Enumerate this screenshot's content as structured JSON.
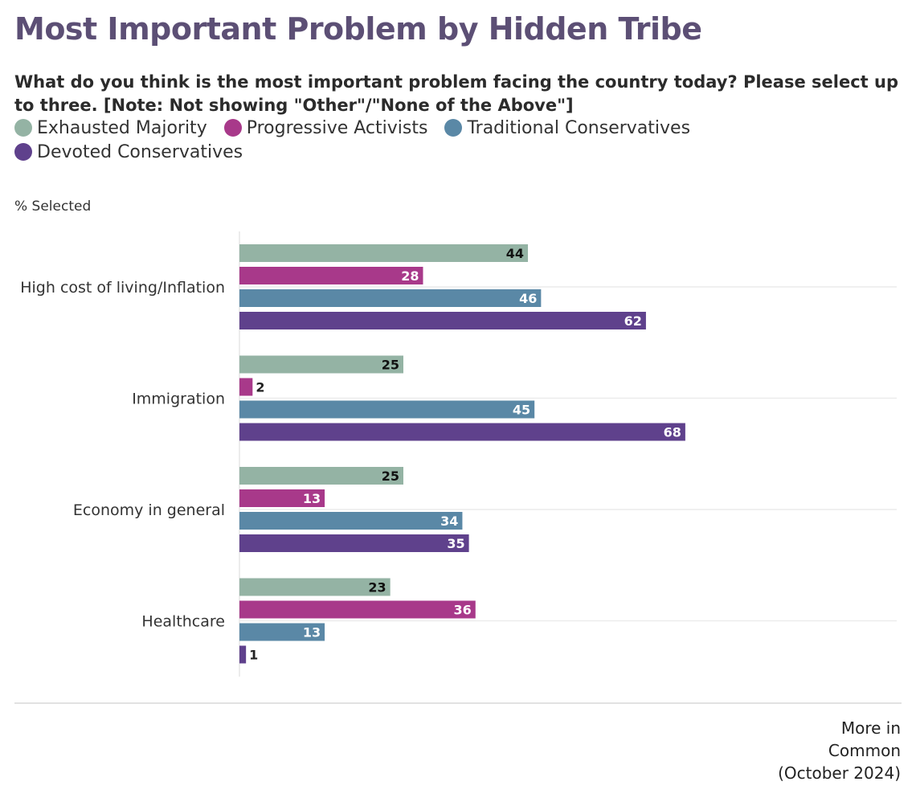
{
  "title": "Most Important Problem by Hidden Tribe",
  "subtitle": "What do you think is the most important problem facing the country today? Please select up to three. [Note: Not showing \"Other\"/\"None of the Above\"]",
  "source": {
    "line1": "More in",
    "line2": "Common",
    "line3": "(October 2024)"
  },
  "chart_data": {
    "type": "bar",
    "orientation": "horizontal",
    "title": "Most Important Problem by Hidden Tribe",
    "xlabel": "% Selected",
    "xlim": [
      0,
      100
    ],
    "legend_position": "top",
    "grid": true,
    "categories": [
      "High cost of living/Inflation",
      "Immigration",
      "Economy in general",
      "Healthcare"
    ],
    "series": [
      {
        "name": "Exhausted Majority",
        "color": "#94b3a4",
        "label_color": "#111111",
        "values": [
          44,
          25,
          25,
          23
        ]
      },
      {
        "name": "Progressive Activists",
        "color": "#a8398a",
        "label_color": "#ffffff",
        "values": [
          28,
          2,
          13,
          36
        ]
      },
      {
        "name": "Traditional Conservatives",
        "color": "#5a88a6",
        "label_color": "#ffffff",
        "values": [
          46,
          45,
          34,
          13
        ]
      },
      {
        "name": "Devoted Conservatives",
        "color": "#5f418c",
        "label_color": "#ffffff",
        "values": [
          62,
          68,
          35,
          1
        ]
      }
    ]
  }
}
